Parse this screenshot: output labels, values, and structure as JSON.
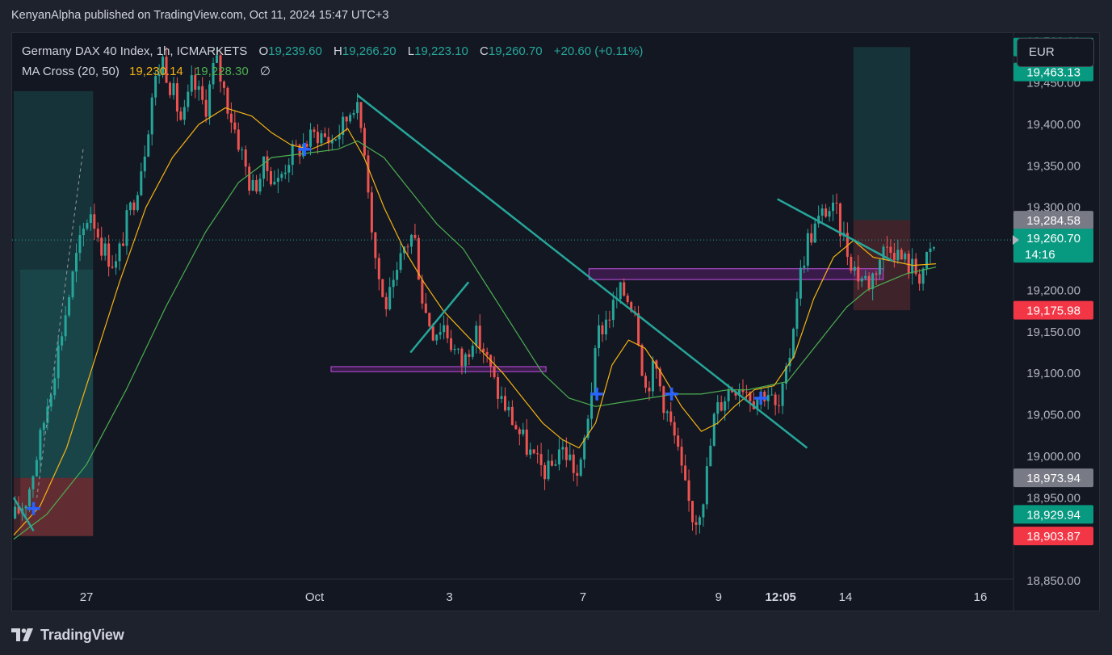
{
  "header": {
    "publisher_line": "KenyanAlpha published on TradingView.com, Oct 11, 2024 15:47 UTC+3"
  },
  "legend": {
    "symbol": "Germany DAX 40 Index, 1h, ICMARKETS",
    "o_label": "O",
    "o_value": "19,239.60",
    "h_label": "H",
    "h_value": "19,266.20",
    "l_label": "L",
    "l_value": "19,223.10",
    "c_label": "C",
    "c_value": "19,260.70",
    "change": "+20.60 (+0.11%)",
    "ma_name": "MA Cross (20, 50)",
    "ma20_value": "19,230.14",
    "ma50_value": "19,228.30",
    "ma_icon": "∅"
  },
  "currency": "EUR",
  "footer": {
    "brand": "TradingView",
    "logo_icon": "tradingview-logo-icon"
  },
  "colors": {
    "up": "#26a69a",
    "down": "#ef5350",
    "ma20": "#f5b312",
    "ma50": "#4caf50",
    "trendline": "#26a69a",
    "zone": "#9c27b0",
    "cross": "#2962ff",
    "background": "#131722"
  },
  "chart_data": {
    "type": "candlestick",
    "timeframe": "1h",
    "y_axis": {
      "ylim": [
        18850,
        19510
      ],
      "ticks": [
        {
          "value": 18850,
          "label": "18,850.00"
        },
        {
          "value": 18950,
          "label": "18,950.00"
        },
        {
          "value": 19000,
          "label": "19,000.00"
        },
        {
          "value": 19050,
          "label": "19,050.00"
        },
        {
          "value": 19100,
          "label": "19,100.00"
        },
        {
          "value": 19150,
          "label": "19,150.00"
        },
        {
          "value": 19200,
          "label": "19,200.00"
        },
        {
          "value": 19250,
          "label": "19,250.00"
        },
        {
          "value": 19300,
          "label": "19,300.00"
        },
        {
          "value": 19350,
          "label": "19,350.00"
        },
        {
          "value": 19400,
          "label": "19,400.00"
        },
        {
          "value": 19450,
          "label": "19,450.00"
        },
        {
          "value": 19500,
          "label": "19,500.00"
        }
      ]
    },
    "x_axis": {
      "ticks": [
        {
          "label": "27",
          "day": 27
        },
        {
          "label": "Oct",
          "day": 30.45
        },
        {
          "label": "3",
          "day": 32.49
        },
        {
          "label": "7",
          "day": 34.51
        },
        {
          "label": "9",
          "day": 36.56
        },
        {
          "label": "12:05",
          "day": 37.5
        },
        {
          "label": "14",
          "day": 38.48
        },
        {
          "label": "16",
          "day": 40.52
        }
      ]
    },
    "price_tags": [
      {
        "label": "19,493.17",
        "value": 19493.17,
        "color": "#089981"
      },
      {
        "label": "19,463.13",
        "value": 19463.13,
        "color": "#089981"
      },
      {
        "label": "19,284.58",
        "value": 19284.58,
        "color": "#787b86"
      },
      {
        "label": "19,260.70",
        "sub": "14:16",
        "value": 19260.7,
        "color": "#089981",
        "current": true
      },
      {
        "label": "19,175.98",
        "value": 19175.98,
        "color": "#f23645"
      },
      {
        "label": "18,973.94",
        "value": 18973.94,
        "color": "#787b86"
      },
      {
        "label": "18,929.94",
        "value": 18929.94,
        "color": "#089981"
      },
      {
        "label": "18,903.87",
        "value": 18903.87,
        "color": "#f23645"
      }
    ],
    "current_price": 19260.7,
    "path": [
      [
        25.9,
        18925
      ],
      [
        26.1,
        18950
      ],
      [
        26.3,
        19020
      ],
      [
        26.5,
        19100
      ],
      [
        26.7,
        19180
      ],
      [
        26.85,
        19240
      ],
      [
        27.05,
        19300
      ],
      [
        27.25,
        19250
      ],
      [
        27.45,
        19230
      ],
      [
        27.6,
        19280
      ],
      [
        27.75,
        19320
      ],
      [
        27.9,
        19380
      ],
      [
        28.0,
        19440
      ],
      [
        28.15,
        19480
      ],
      [
        28.3,
        19440
      ],
      [
        28.45,
        19400
      ],
      [
        28.6,
        19450
      ],
      [
        28.8,
        19420
      ],
      [
        28.95,
        19480
      ],
      [
        29.15,
        19420
      ],
      [
        29.3,
        19380
      ],
      [
        29.5,
        19320
      ],
      [
        29.7,
        19350
      ],
      [
        29.9,
        19330
      ],
      [
        30.05,
        19360
      ],
      [
        30.2,
        19370
      ],
      [
        30.35,
        19380
      ],
      [
        30.5,
        19390
      ],
      [
        30.7,
        19380
      ],
      [
        30.9,
        19400
      ],
      [
        31.05,
        19430
      ],
      [
        31.2,
        19380
      ],
      [
        31.35,
        19250
      ],
      [
        31.5,
        19180
      ],
      [
        31.65,
        19200
      ],
      [
        31.8,
        19250
      ],
      [
        31.95,
        19270
      ],
      [
        32.1,
        19180
      ],
      [
        32.25,
        19150
      ],
      [
        32.4,
        19160
      ],
      [
        32.55,
        19130
      ],
      [
        32.7,
        19110
      ],
      [
        32.85,
        19150
      ],
      [
        33.0,
        19130
      ],
      [
        33.2,
        19080
      ],
      [
        33.4,
        19050
      ],
      [
        33.6,
        19020
      ],
      [
        33.8,
        18990
      ],
      [
        34.0,
        18980
      ],
      [
        34.15,
        19010
      ],
      [
        34.3,
        19000
      ],
      [
        34.45,
        18970
      ],
      [
        34.6,
        19060
      ],
      [
        34.75,
        19150
      ],
      [
        34.9,
        19170
      ],
      [
        35.1,
        19200
      ],
      [
        35.3,
        19180
      ],
      [
        35.45,
        19080
      ],
      [
        35.6,
        19110
      ],
      [
        35.75,
        19060
      ],
      [
        35.9,
        19020
      ],
      [
        36.05,
        18960
      ],
      [
        36.2,
        18920
      ],
      [
        36.35,
        18960
      ],
      [
        36.5,
        19050
      ],
      [
        36.7,
        19080
      ],
      [
        36.9,
        19090
      ],
      [
        37.1,
        19070
      ],
      [
        37.3,
        19080
      ],
      [
        37.45,
        19050
      ],
      [
        37.6,
        19100
      ],
      [
        37.75,
        19200
      ],
      [
        37.9,
        19260
      ],
      [
        38.05,
        19280
      ],
      [
        38.2,
        19300
      ],
      [
        38.35,
        19290
      ],
      [
        38.5,
        19250
      ],
      [
        38.65,
        19220
      ],
      [
        38.85,
        19210
      ],
      [
        39.0,
        19240
      ],
      [
        39.15,
        19260
      ],
      [
        39.3,
        19240
      ],
      [
        39.45,
        19230
      ],
      [
        39.6,
        19220
      ],
      [
        39.75,
        19240
      ],
      [
        39.85,
        19255
      ]
    ],
    "ma20": [
      [
        25.9,
        18905
      ],
      [
        26.3,
        18940
      ],
      [
        26.7,
        19010
      ],
      [
        27.1,
        19110
      ],
      [
        27.5,
        19210
      ],
      [
        27.9,
        19300
      ],
      [
        28.3,
        19360
      ],
      [
        28.7,
        19400
      ],
      [
        29.1,
        19420
      ],
      [
        29.5,
        19410
      ],
      [
        29.8,
        19390
      ],
      [
        30.1,
        19375
      ],
      [
        30.4,
        19370
      ],
      [
        30.7,
        19380
      ],
      [
        30.95,
        19395
      ],
      [
        31.2,
        19360
      ],
      [
        31.5,
        19300
      ],
      [
        31.8,
        19250
      ],
      [
        32.1,
        19210
      ],
      [
        32.4,
        19175
      ],
      [
        32.7,
        19150
      ],
      [
        33.0,
        19125
      ],
      [
        33.3,
        19100
      ],
      [
        33.6,
        19070
      ],
      [
        33.9,
        19040
      ],
      [
        34.2,
        19020
      ],
      [
        34.45,
        19010
      ],
      [
        34.7,
        19040
      ],
      [
        34.95,
        19110
      ],
      [
        35.2,
        19140
      ],
      [
        35.45,
        19130
      ],
      [
        35.7,
        19100
      ],
      [
        36.0,
        19060
      ],
      [
        36.3,
        19030
      ],
      [
        36.55,
        19040
      ],
      [
        36.8,
        19060
      ],
      [
        37.1,
        19080
      ],
      [
        37.4,
        19085
      ],
      [
        37.7,
        19120
      ],
      [
        38.0,
        19190
      ],
      [
        38.3,
        19240
      ],
      [
        38.6,
        19260
      ],
      [
        38.9,
        19240
      ],
      [
        39.2,
        19235
      ],
      [
        39.5,
        19230
      ],
      [
        39.85,
        19232
      ]
    ],
    "ma50": [
      [
        25.9,
        18900
      ],
      [
        26.4,
        18930
      ],
      [
        27.0,
        18990
      ],
      [
        27.6,
        19080
      ],
      [
        28.2,
        19180
      ],
      [
        28.8,
        19270
      ],
      [
        29.3,
        19330
      ],
      [
        29.8,
        19360
      ],
      [
        30.3,
        19365
      ],
      [
        30.8,
        19370
      ],
      [
        31.1,
        19380
      ],
      [
        31.5,
        19360
      ],
      [
        31.9,
        19320
      ],
      [
        32.3,
        19280
      ],
      [
        32.7,
        19250
      ],
      [
        33.1,
        19200
      ],
      [
        33.5,
        19150
      ],
      [
        33.9,
        19100
      ],
      [
        34.3,
        19070
      ],
      [
        34.7,
        19060
      ],
      [
        35.1,
        19065
      ],
      [
        35.5,
        19070
      ],
      [
        35.9,
        19075
      ],
      [
        36.3,
        19075
      ],
      [
        36.7,
        19080
      ],
      [
        37.0,
        19080
      ],
      [
        37.3,
        19085
      ],
      [
        37.6,
        19090
      ],
      [
        37.9,
        19120
      ],
      [
        38.2,
        19150
      ],
      [
        38.5,
        19180
      ],
      [
        38.8,
        19200
      ],
      [
        39.1,
        19210
      ],
      [
        39.4,
        19220
      ],
      [
        39.85,
        19228
      ]
    ],
    "trendlines": [
      {
        "from": [
          31.1,
          19435
        ],
        "to": [
          37.9,
          19010
        ]
      },
      {
        "from": [
          31.9,
          19125
        ],
        "to": [
          32.78,
          19210
        ]
      },
      {
        "from": [
          37.45,
          19310
        ],
        "to": [
          39.2,
          19235
        ]
      },
      {
        "from": [
          25.9,
          18950
        ],
        "to": [
          26.2,
          18910
        ]
      },
      {
        "from": [
          26.95,
          19370
        ],
        "to": [
          26.25,
          18950
        ],
        "dashed": true
      }
    ],
    "zones": [
      {
        "x1": 34.6,
        "x2": 39.05,
        "y1": 19213,
        "y2": 19226
      },
      {
        "x1": 30.7,
        "x2": 33.95,
        "y1": 19102,
        "y2": 19108
      }
    ],
    "positions": [
      {
        "x1": 25.9,
        "x2": 27.1,
        "entry": 18973.94,
        "target": 19440,
        "stop": 18903.87
      },
      {
        "x1": 26.0,
        "x2": 27.1,
        "entry": 18973.94,
        "target": 19225,
        "stop": 18903.87,
        "inner": true
      },
      {
        "x1": 38.6,
        "x2": 39.46,
        "entry": 19284.58,
        "target": 19493.17,
        "stop": 19175.98
      }
    ],
    "ma_cross_markers": [
      {
        "x": 26.2,
        "y": 18937
      },
      {
        "x": 30.3,
        "y": 19370
      },
      {
        "x": 34.72,
        "y": 19075
      },
      {
        "x": 35.85,
        "y": 19075
      },
      {
        "x": 37.2,
        "y": 19070
      }
    ]
  }
}
